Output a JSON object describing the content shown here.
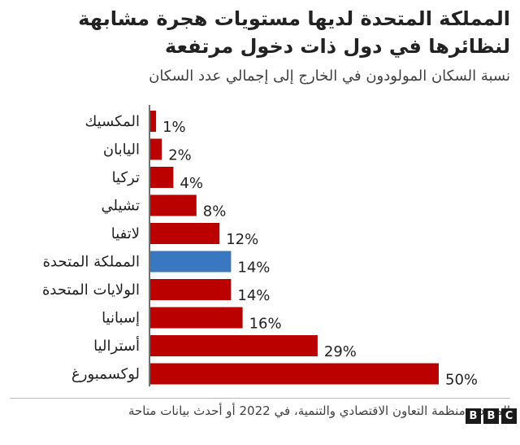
{
  "header": {
    "title": "المملكة المتحدة لديها مستويات هجرة مشابهة لنظائرها في دول ذات دخول مرتفعة",
    "subtitle": "نسبة السكان المولودون في الخارج إلى إجمالي عدد السكان"
  },
  "footer": {
    "source": "المصدر: منظمة التعاون الاقتصادي والتنمية، في 2022 أو أحدث بيانات متاحة",
    "logo_letters": [
      "B",
      "B",
      "C"
    ]
  },
  "colors": {
    "bar": "#bb0000",
    "highlight": "#3a77c1",
    "axis": "#444444"
  },
  "chart_data": {
    "type": "bar",
    "orientation": "horizontal",
    "categories": [
      "المكسيك",
      "اليابان",
      "تركيا",
      "تشيلي",
      "لاتفيا",
      "المملكة المتحدة",
      "الولايات المتحدة",
      "إسبانيا",
      "أستراليا",
      "لوكسمبورغ"
    ],
    "values": [
      1,
      2,
      4,
      8,
      12,
      14,
      14,
      16,
      29,
      50
    ],
    "value_labels": [
      "1%",
      "2%",
      "4%",
      "8%",
      "12%",
      "14%",
      "14%",
      "16%",
      "29%",
      "50%"
    ],
    "highlight_category": "المملكة المتحدة",
    "xlim": [
      0,
      50
    ],
    "grid": false,
    "legend": "none"
  }
}
